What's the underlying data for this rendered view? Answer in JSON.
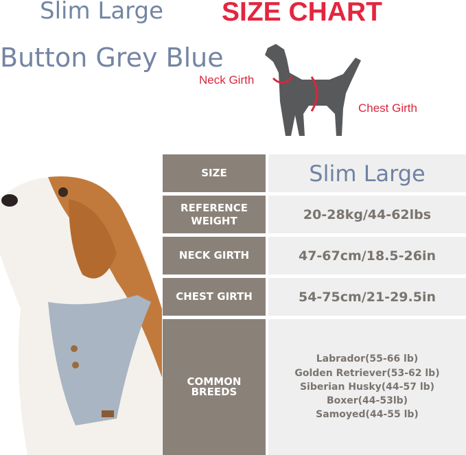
{
  "header": {
    "size_name": "Slim Large",
    "chart_title": "SIZE CHART",
    "color_name": "Button Grey Blue"
  },
  "diagram": {
    "neck_label": "Neck Girth",
    "chest_label": "Chest Girth"
  },
  "colors": {
    "accent_red": "#e3263f",
    "title_blue": "#7485a3",
    "label_bg": "#8a8279",
    "value_bg": "#efefef"
  },
  "table": {
    "rows": [
      {
        "label": "SIZE",
        "value": "Slim Large"
      },
      {
        "label": "REFERENCE WEIGHT",
        "value": "20-28kg/44-62lbs"
      },
      {
        "label": "NECK GIRTH",
        "value": "47-67cm/18.5-26in"
      },
      {
        "label": "CHEST GIRTH",
        "value": "54-75cm/21-29.5in"
      },
      {
        "label": "COMMON BREEDS",
        "breeds": [
          "Labrador(55-66 lb)",
          "Golden Retriever(53-62 lb)",
          "Siberian Husky(44-57 lb)",
          "Boxer(44-53lb)",
          "Samoyed(44-55 lb)"
        ]
      }
    ]
  }
}
